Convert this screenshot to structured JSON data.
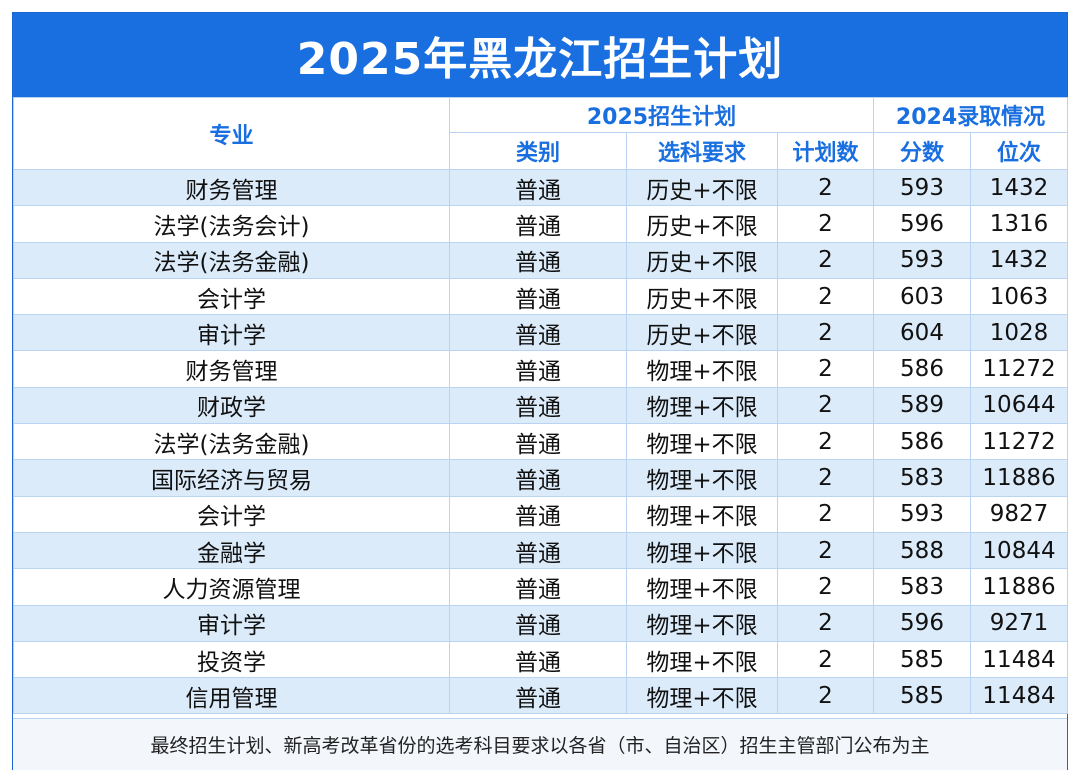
{
  "title": "2025年黑龙江招生计划",
  "headers": {
    "major": "专业",
    "plan_group": "2025招生计划",
    "admit_group": "2024录取情况",
    "category": "类别",
    "subjects": "选科要求",
    "plan_count": "计划数",
    "score": "分数",
    "rank": "位次"
  },
  "rows": [
    {
      "major": "财务管理",
      "category": "普通",
      "subjects": "历史+不限",
      "plan": "2",
      "score": "593",
      "rank": "1432"
    },
    {
      "major": "法学(法务会计)",
      "category": "普通",
      "subjects": "历史+不限",
      "plan": "2",
      "score": "596",
      "rank": "1316"
    },
    {
      "major": "法学(法务金融)",
      "category": "普通",
      "subjects": "历史+不限",
      "plan": "2",
      "score": "593",
      "rank": "1432"
    },
    {
      "major": "会计学",
      "category": "普通",
      "subjects": "历史+不限",
      "plan": "2",
      "score": "603",
      "rank": "1063"
    },
    {
      "major": "审计学",
      "category": "普通",
      "subjects": "历史+不限",
      "plan": "2",
      "score": "604",
      "rank": "1028"
    },
    {
      "major": "财务管理",
      "category": "普通",
      "subjects": "物理+不限",
      "plan": "2",
      "score": "586",
      "rank": "11272"
    },
    {
      "major": "财政学",
      "category": "普通",
      "subjects": "物理+不限",
      "plan": "2",
      "score": "589",
      "rank": "10644"
    },
    {
      "major": "法学(法务金融)",
      "category": "普通",
      "subjects": "物理+不限",
      "plan": "2",
      "score": "586",
      "rank": "11272"
    },
    {
      "major": "国际经济与贸易",
      "category": "普通",
      "subjects": "物理+不限",
      "plan": "2",
      "score": "583",
      "rank": "11886"
    },
    {
      "major": "会计学",
      "category": "普通",
      "subjects": "物理+不限",
      "plan": "2",
      "score": "593",
      "rank": "9827"
    },
    {
      "major": "金融学",
      "category": "普通",
      "subjects": "物理+不限",
      "plan": "2",
      "score": "588",
      "rank": "10844"
    },
    {
      "major": "人力资源管理",
      "category": "普通",
      "subjects": "物理+不限",
      "plan": "2",
      "score": "583",
      "rank": "11886"
    },
    {
      "major": "审计学",
      "category": "普通",
      "subjects": "物理+不限",
      "plan": "2",
      "score": "596",
      "rank": "9271"
    },
    {
      "major": "投资学",
      "category": "普通",
      "subjects": "物理+不限",
      "plan": "2",
      "score": "585",
      "rank": "11484"
    },
    {
      "major": "信用管理",
      "category": "普通",
      "subjects": "物理+不限",
      "plan": "2",
      "score": "585",
      "rank": "11484"
    }
  ],
  "footer": "最终招生计划、新高考改革省份的选考科目要求以各省（市、自治区）招生主管部门公布为主"
}
